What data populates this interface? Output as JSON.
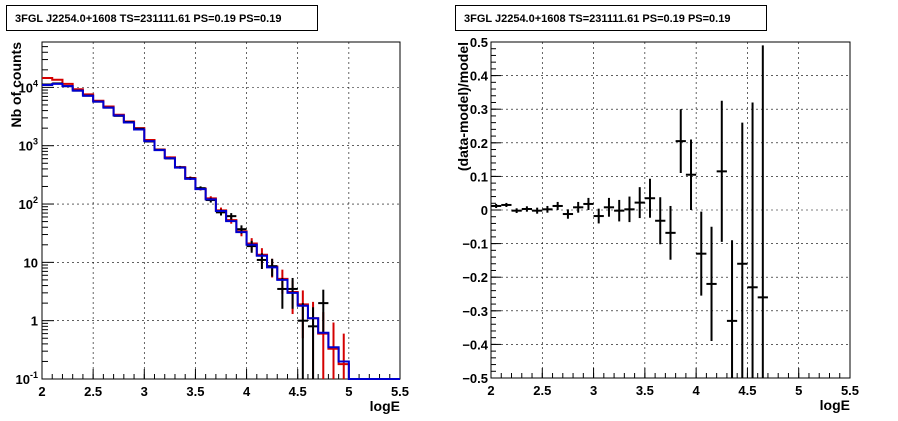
{
  "panels": [
    {
      "title": "3FGL J2254.0+1608 TS=231111.61 PS=0.19 PS=0.19",
      "xlabel": "logE",
      "ylabel": "Nb of counts"
    },
    {
      "title": "3FGL J2254.0+1608 TS=231111.61 PS=0.19 PS=0.19",
      "xlabel": "logE",
      "ylabel": "(data-model)/model"
    }
  ],
  "chart_data": [
    {
      "type": "line",
      "title": "3FGL J2254.0+1608 TS=231111.61 PS=0.19 PS=0.19",
      "xlabel": "logE",
      "ylabel": "Nb of counts",
      "xlim": [
        2,
        5.5
      ],
      "ylim": [
        0.1,
        60000
      ],
      "yscale": "log",
      "grid": true,
      "x_ticks": [
        "2",
        "2.5",
        "3",
        "3.5",
        "4",
        "4.5",
        "5",
        "5.5"
      ],
      "y_ticks": [
        {
          "value": 0.1,
          "base": "10",
          "exp": "-1"
        },
        {
          "value": 1,
          "base": "1",
          "exp": ""
        },
        {
          "value": 10,
          "base": "10",
          "exp": ""
        },
        {
          "value": 100,
          "base": "10",
          "exp": "2"
        },
        {
          "value": 1000,
          "base": "10",
          "exp": "3"
        },
        {
          "value": 10000,
          "base": "10",
          "exp": "4"
        }
      ],
      "bin_edges": [
        2.0,
        2.1,
        2.2,
        2.3,
        2.4,
        2.5,
        2.6,
        2.7,
        2.8,
        2.9,
        3.0,
        3.1,
        3.2,
        3.3,
        3.4,
        3.5,
        3.6,
        3.7,
        3.8,
        3.9,
        4.0,
        4.1,
        4.2,
        4.3,
        4.4,
        4.5,
        4.6,
        4.7,
        4.8,
        4.9,
        5.0,
        5.1,
        5.2,
        5.3,
        5.4,
        5.5
      ],
      "series": [
        {
          "color": "#d40000",
          "style": "step-with-errors",
          "values": [
            14500,
            13500,
            11500,
            9300,
            7600,
            5900,
            4700,
            3400,
            2600,
            2000,
            1250,
            860,
            630,
            430,
            280,
            185,
            125,
            78,
            53,
            34,
            21,
            13.5,
            8.5,
            5.2,
            3.1,
            1.9,
            1.1,
            0.6,
            0.33,
            0.18,
            0.1,
            0.1,
            0.1,
            0.1,
            0.1
          ],
          "errors": [
            120,
            116,
            107,
            96,
            87,
            77,
            69,
            58,
            51,
            45,
            35,
            29,
            25,
            21,
            17,
            14,
            11,
            9,
            7,
            6,
            5,
            4,
            3,
            2.3,
            1.8,
            1.4,
            1.0,
            0.8,
            0.6,
            0.42,
            0,
            0,
            0,
            0,
            0
          ]
        },
        {
          "color": "#0000d0",
          "style": "step",
          "values": [
            11000,
            11500,
            10500,
            8800,
            7200,
            5700,
            4500,
            3300,
            2500,
            1900,
            1200,
            840,
            610,
            420,
            270,
            180,
            120,
            76,
            51,
            33,
            20,
            13,
            8.2,
            5.0,
            3.0,
            1.8,
            1.1,
            0.62,
            0.35,
            0.2,
            0.1,
            0.1,
            0.1,
            0.1,
            0.1
          ]
        },
        {
          "color": "#000000",
          "style": "points-with-errors",
          "x": [
            2.05,
            2.15,
            2.25,
            2.35,
            2.45,
            2.55,
            2.65,
            2.75,
            2.85,
            2.95,
            3.05,
            3.15,
            3.25,
            3.35,
            3.45,
            3.55,
            3.65,
            3.75,
            3.85,
            3.95,
            4.05,
            4.15,
            4.25,
            4.35,
            4.45,
            4.55,
            4.65,
            4.75
          ],
          "y": [
            11200,
            11700,
            10500,
            8800,
            7200,
            5700,
            4500,
            3250,
            2550,
            1950,
            1180,
            850,
            605,
            425,
            275,
            187,
            117,
            72,
            62,
            37,
            19,
            11,
            8.6,
            3.5,
            3.5,
            1,
            0.8,
            2
          ],
          "y_err": [
            106,
            108,
            102,
            94,
            85,
            75,
            67,
            57,
            50,
            44,
            34,
            29,
            25,
            21,
            17,
            14,
            11,
            8.5,
            7.9,
            6.1,
            4.4,
            3.3,
            2.9,
            1.9,
            1.9,
            1,
            0.9,
            1.4
          ]
        }
      ]
    },
    {
      "type": "scatter",
      "title": "3FGL J2254.0+1608 TS=231111.61 PS=0.19 PS=0.19",
      "xlabel": "logE",
      "ylabel": "(data-model)/model",
      "xlim": [
        2,
        5.5
      ],
      "ylim": [
        -0.5,
        0.5
      ],
      "grid": true,
      "x_ticks": [
        "2",
        "2.5",
        "3",
        "3.5",
        "4",
        "4.5",
        "5",
        "5.5"
      ],
      "y_ticks": [
        "−0.5",
        "−0.4",
        "−0.3",
        "−0.2",
        "−0.1",
        "0",
        "0.1",
        "0.2",
        "0.3",
        "0.4",
        "0.5"
      ],
      "series": [
        {
          "color": "#000000",
          "x": [
            2.05,
            2.15,
            2.25,
            2.35,
            2.45,
            2.55,
            2.65,
            2.75,
            2.85,
            2.95,
            3.05,
            3.15,
            3.25,
            3.35,
            3.45,
            3.55,
            3.65,
            3.75,
            3.85,
            3.95,
            4.05,
            4.15,
            4.25,
            4.35,
            4.45,
            4.55,
            4.65
          ],
          "y": [
            0.012,
            0.015,
            -0.002,
            0.003,
            -0.002,
            0.002,
            0.012,
            -0.012,
            0.008,
            0.018,
            -0.018,
            0.008,
            -0.002,
            0.002,
            0.022,
            0.035,
            -0.032,
            -0.068,
            0.205,
            0.105,
            -0.13,
            -0.22,
            0.115,
            -0.33,
            -0.16,
            -0.23,
            -0.26
          ],
          "y_err": [
            0.006,
            0.006,
            0.007,
            0.008,
            0.009,
            0.01,
            0.012,
            0.014,
            0.016,
            0.018,
            0.022,
            0.028,
            0.032,
            0.038,
            0.046,
            0.058,
            0.07,
            0.08,
            0.095,
            0.105,
            0.125,
            0.17,
            0.21,
            0.24,
            0.42,
            0.55,
            0.75
          ]
        }
      ]
    }
  ]
}
